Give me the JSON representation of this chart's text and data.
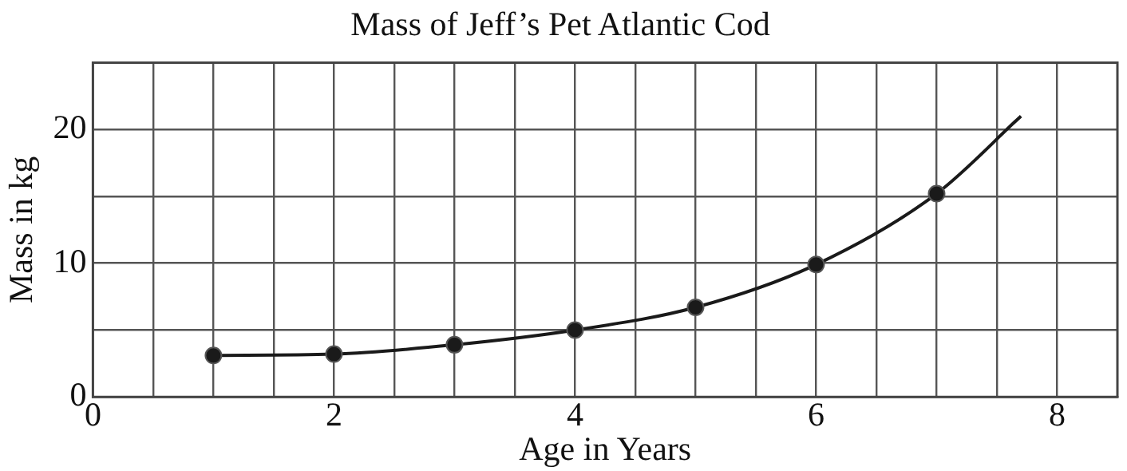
{
  "chart_data": {
    "type": "scatter",
    "title": "Mass of Jeff’s Pet Atlantic Cod",
    "xlabel": "Age in Years",
    "ylabel": "Mass in kg",
    "xlim": [
      0,
      8.5
    ],
    "xticks": [
      0,
      {
        "value": 0.5,
        "label": null
      },
      {
        "value": 1,
        "label": null
      },
      {
        "value": 1.5,
        "label": null
      },
      2,
      {
        "value": 2.5,
        "label": null
      },
      {
        "value": 3,
        "label": null
      },
      {
        "value": 3.5,
        "label": null
      },
      4,
      {
        "value": 4.5,
        "label": null
      },
      {
        "value": 5,
        "label": null
      },
      {
        "value": 5.5,
        "label": null
      },
      6,
      {
        "value": 6.5,
        "label": null
      },
      {
        "value": 7,
        "label": null
      },
      {
        "value": 7.5,
        "label": null
      },
      8
    ],
    "ylim": [
      0,
      25
    ],
    "yticks": [
      0,
      {
        "value": 5,
        "label": null
      },
      10,
      {
        "value": 15,
        "label": null
      },
      20
    ],
    "grid": true,
    "legend": false,
    "series": [
      {
        "type": "line",
        "color": "#1a1a1a",
        "marker": "none",
        "line_style": "solid",
        "x": [
          1,
          2,
          3,
          4,
          5,
          6,
          7,
          7.7
        ],
        "values": [
          3.1,
          3.2,
          3.9,
          5.0,
          6.7,
          9.9,
          15.2,
          21.0
        ]
      },
      {
        "color": "#1a1a1a",
        "marker": "circle",
        "x": [
          1,
          2,
          3,
          4,
          5,
          6,
          7
        ],
        "values": [
          3.1,
          3.2,
          3.9,
          5.0,
          6.7,
          9.9,
          15.2
        ]
      }
    ]
  }
}
